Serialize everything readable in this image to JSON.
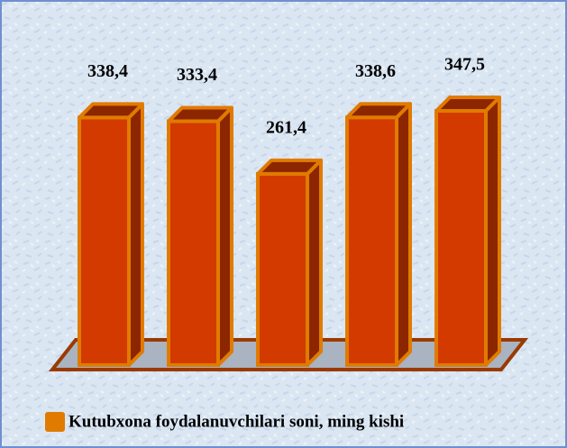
{
  "chart_data": {
    "type": "bar3d",
    "categories": [
      null,
      null,
      null,
      null,
      null
    ],
    "series": [
      {
        "name": "Kutubxona foydalanuvchilari soni, ming kishi",
        "color": "#d33a00",
        "values": [
          338.4,
          333.4,
          261.4,
          338.6,
          347.5
        ],
        "value_labels": [
          "338,4",
          "333,4",
          "261,4",
          "338,6",
          "347,5"
        ]
      }
    ]
  }
}
